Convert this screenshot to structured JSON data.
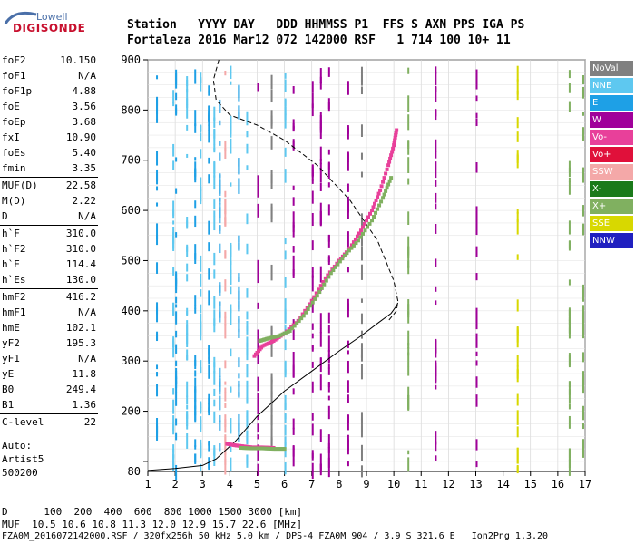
{
  "logo": {
    "top": "Lowell",
    "main": "DIGISONDE"
  },
  "header": {
    "line1": "Station   YYYY DAY   DDD HHMMSS P1  FFS S AXN PPS IGA PS",
    "line2": "Fortaleza 2016 Mar12 072 142000 RSF   1 714 100 10+ 11"
  },
  "params": [
    {
      "k": "foF2",
      "v": "10.150"
    },
    {
      "k": "foF1",
      "v": "N/A"
    },
    {
      "k": "foF1p",
      "v": "4.88"
    },
    {
      "k": "foE",
      "v": "3.56"
    },
    {
      "k": "foEp",
      "v": "3.68"
    },
    {
      "k": "fxI",
      "v": "10.90"
    },
    {
      "k": "foEs",
      "v": "5.40"
    },
    {
      "k": "fmin",
      "v": "3.35"
    },
    {
      "k": "MUF(D)",
      "v": "22.58"
    },
    {
      "k": "M(D)",
      "v": "2.22"
    },
    {
      "k": "D",
      "v": "N/A"
    },
    {
      "k": "h`F",
      "v": "310.0"
    },
    {
      "k": "h`F2",
      "v": "310.0"
    },
    {
      "k": "h`E",
      "v": "114.4"
    },
    {
      "k": "h`Es",
      "v": "130.0"
    },
    {
      "k": "hmF2",
      "v": "416.2"
    },
    {
      "k": "hmF1",
      "v": "N/A"
    },
    {
      "k": "hmE",
      "v": "102.1"
    },
    {
      "k": "yF2",
      "v": "195.3"
    },
    {
      "k": "yF1",
      "v": "N/A"
    },
    {
      "k": "yE",
      "v": "11.8"
    },
    {
      "k": "B0",
      "v": "249.4"
    },
    {
      "k": "B1",
      "v": "1.36"
    },
    {
      "k": "C-level",
      "v": "22"
    }
  ],
  "auto": {
    "l1": "Auto:",
    "l2": "Artist5",
    "l3": "500200"
  },
  "footer": {
    "l1": "D      100  200  400  600  800 1000 1500 3000 [km]",
    "l2": "MUF  10.5 10.6 10.8 11.3 12.0 12.9 15.7 22.6 [MHz]",
    "l3": "FZA0M_2016072142000.RSF / 320fx256h 50 kHz 5.0 km / DPS-4 FZA0M 904 / 3.9 S 321.6 E   Ion2Png 1.3.20"
  },
  "legend": [
    {
      "label": "NoVal",
      "color": "#808080"
    },
    {
      "label": "NNE",
      "color": "#5ec8f0"
    },
    {
      "label": "E",
      "color": "#1ea0e6"
    },
    {
      "label": "W",
      "color": "#a0009a"
    },
    {
      "label": "Vo-",
      "color": "#e8409a"
    },
    {
      "label": "Vo+",
      "color": "#e0103a"
    },
    {
      "label": "SSW",
      "color": "#f4a8a8"
    },
    {
      "label": "X-",
      "color": "#1a7a1a"
    },
    {
      "label": "X+",
      "color": "#80b060"
    },
    {
      "label": "SSE",
      "color": "#d8d800"
    },
    {
      "label": "NNW",
      "color": "#2020c0"
    }
  ],
  "chart_data": {
    "type": "scatter",
    "title": "",
    "xlabel": "",
    "ylabel": "",
    "xlim": [
      1,
      17
    ],
    "ylim": [
      80,
      900
    ],
    "x_ticks": [
      1,
      2,
      3,
      4,
      5,
      6,
      7,
      8,
      9,
      10,
      11,
      12,
      13,
      14,
      15,
      16,
      17
    ],
    "y_ticks": [
      100,
      200,
      300,
      400,
      500,
      600,
      700,
      800,
      900
    ],
    "y_tick_labels": [
      "",
      "200",
      "300",
      "400",
      "500",
      "600",
      "700",
      "800",
      "900"
    ],
    "extra_y_label": "80",
    "series": [
      {
        "name": "Vo-",
        "color": "#e8409a",
        "x": [
          4.9,
          5.2,
          5.6,
          6.0,
          6.5,
          7.0,
          7.5,
          8.0,
          8.4,
          8.8,
          9.2,
          9.5,
          9.8,
          10.0,
          10.1
        ],
        "y": [
          310,
          330,
          340,
          355,
          380,
          420,
          465,
          500,
          525,
          560,
          600,
          640,
          690,
          730,
          760
        ]
      },
      {
        "name": "X+",
        "color": "#80b060",
        "x": [
          5.1,
          5.4,
          5.8,
          6.2,
          6.7,
          7.2,
          7.7,
          8.2,
          8.7,
          9.2,
          9.6,
          9.9
        ],
        "y": [
          340,
          345,
          350,
          360,
          390,
          430,
          475,
          510,
          540,
          580,
          625,
          665
        ]
      },
      {
        "name": "Vo-",
        "color": "#e8409a",
        "x": [
          3.9,
          4.2,
          4.5,
          4.8,
          5.2,
          5.6
        ],
        "y": [
          135,
          132,
          130,
          128,
          128,
          127
        ]
      },
      {
        "name": "X+",
        "color": "#80b060",
        "x": [
          4.4,
          4.8,
          5.2,
          5.6,
          6.0
        ],
        "y": [
          127,
          126,
          126,
          125,
          125
        ]
      }
    ],
    "profile_solid": {
      "x": [
        1,
        2,
        3,
        3.5,
        3.8,
        4.2,
        5,
        6,
        7,
        8,
        8.8,
        9.4,
        9.9,
        10.1,
        10.15
      ],
      "y": [
        82,
        86,
        92,
        105,
        120,
        140,
        190,
        240,
        280,
        320,
        350,
        375,
        395,
        410,
        416
      ]
    },
    "profile_dashed": {
      "x": [
        3.6,
        3.4,
        3.5,
        4.0,
        5.0,
        6.0,
        7.2,
        8.4,
        9.4,
        10.0,
        10.15,
        10.1,
        9.8
      ],
      "y": [
        900,
        860,
        820,
        790,
        770,
        740,
        690,
        620,
        540,
        460,
        420,
        400,
        380
      ]
    }
  }
}
